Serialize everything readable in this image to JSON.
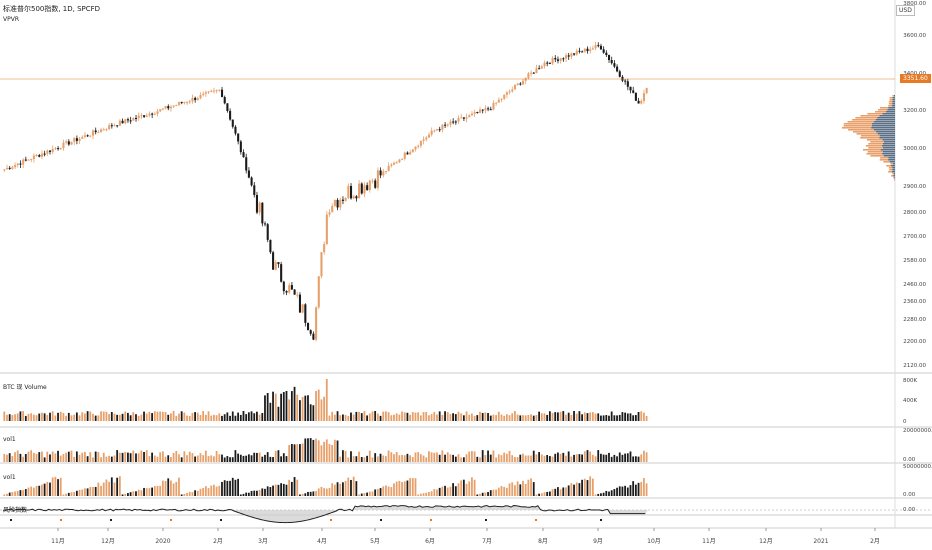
{
  "legend": {
    "symbol": "标准普尔500指数, 1D, SPCFD",
    "indicator": "VPVR"
  },
  "currency": "USD",
  "last_price": "3351.60",
  "panes": {
    "volume": "BTC 现 Volume",
    "vol1a": "vol1",
    "vol1b": "vol1",
    "osc": "风险指数"
  },
  "colors": {
    "up": "#e8a06a",
    "down": "#1a1a1a",
    "accent": "#e87a25",
    "grid": "#e6e6e6"
  },
  "chart_data": [
    {
      "type": "candlestick",
      "title": "标准普尔500指数, 1D, SPCFD",
      "x_ticks": [
        "11月",
        "12月",
        "2020",
        "2月",
        "3月",
        "4月",
        "5月",
        "6月",
        "7月",
        "8月",
        "9月",
        "10月",
        "11月",
        "12月",
        "2021",
        "2月"
      ],
      "y_ticks": [
        "3800.00",
        "3600.00",
        "3400.00",
        "3200.00",
        "3000.00",
        "2900.00",
        "2800.00",
        "2700.00",
        "2580.00",
        "2460.00",
        "2360.00",
        "2280.00",
        "2200.00",
        "2120.00"
      ],
      "anchors": [
        {
          "date": "2019-10",
          "close": 2920
        },
        {
          "date": "2019-11",
          "close": 3030
        },
        {
          "date": "2019-12",
          "close": 3140
        },
        {
          "date": "2020-01",
          "close": 3230
        },
        {
          "date": "2020-02",
          "close": 3330
        },
        {
          "date": "2020-03",
          "close": 2490
        },
        {
          "date": "2020-03-23",
          "close": 2240
        },
        {
          "date": "2020-04",
          "close": 2760
        },
        {
          "date": "2020-05",
          "close": 2900
        },
        {
          "date": "2020-06",
          "close": 3120
        },
        {
          "date": "2020-07",
          "close": 3230
        },
        {
          "date": "2020-08",
          "close": 3480
        },
        {
          "date": "2020-09-02",
          "close": 3580
        },
        {
          "date": "2020-09-24",
          "close": 3250
        },
        {
          "date": "2020-09-28",
          "close": 3351.6
        }
      ]
    },
    {
      "type": "bar",
      "title": "BTC 现 Volume",
      "y_ticks": [
        "800K",
        "400K",
        "0"
      ]
    },
    {
      "type": "bar",
      "title": "vol1",
      "y_ticks": [
        "20000000.00",
        "0.00"
      ]
    },
    {
      "type": "bar",
      "title": "vol1",
      "y_ticks": [
        "50000000.00",
        "0.00"
      ]
    },
    {
      "type": "area",
      "title": "风险指数",
      "y_ticks": [
        "0.00"
      ]
    }
  ]
}
